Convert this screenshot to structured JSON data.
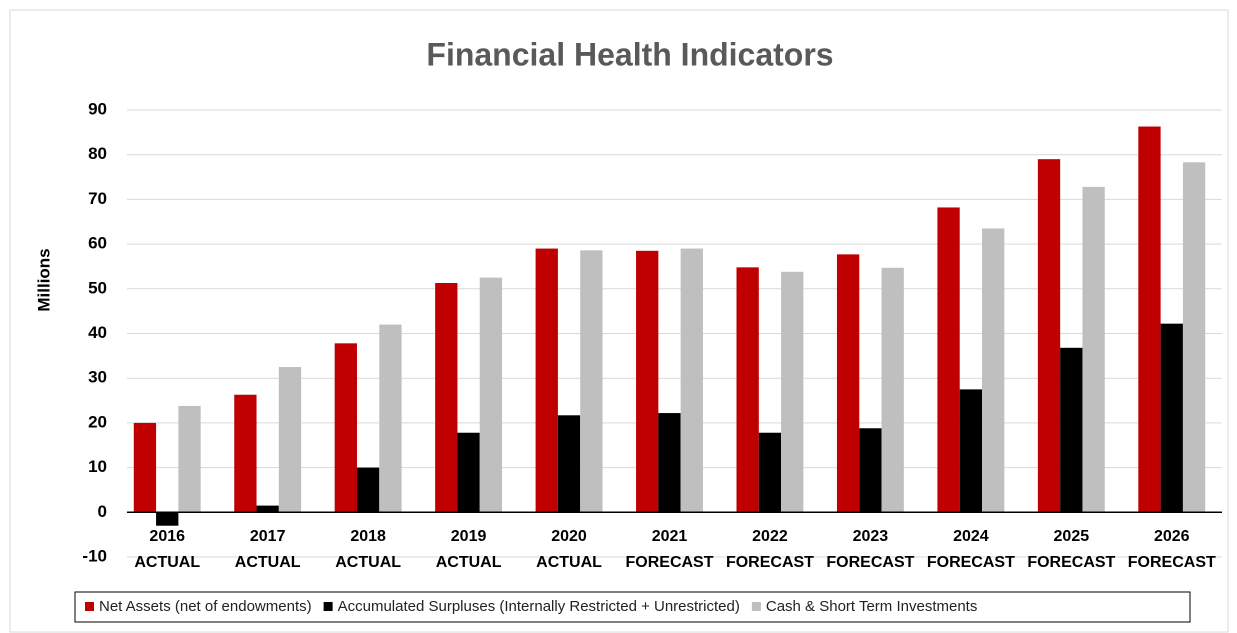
{
  "chart_data": {
    "type": "bar",
    "title": "Financial Health Indicators",
    "y_label": "Millions",
    "categories": [
      [
        "2016",
        "ACTUAL"
      ],
      [
        "2017",
        "ACTUAL"
      ],
      [
        "2018",
        "ACTUAL"
      ],
      [
        "2019",
        "ACTUAL"
      ],
      [
        "2020",
        "ACTUAL"
      ],
      [
        "2021",
        "FORECAST"
      ],
      [
        "2022",
        "FORECAST"
      ],
      [
        "2023",
        "FORECAST"
      ],
      [
        "2024",
        "FORECAST"
      ],
      [
        "2025",
        "FORECAST"
      ],
      [
        "2026",
        "FORECAST"
      ]
    ],
    "series": [
      {
        "name": "Net Assets (net of endowments)",
        "color": "#c00000",
        "values": [
          20,
          26.3,
          37.8,
          51.3,
          59,
          58.5,
          54.8,
          57.7,
          68.2,
          79,
          86.3
        ]
      },
      {
        "name": "Accumulated Surpluses (Internally Restricted + Unrestricted)",
        "color": "#000000",
        "values": [
          -3,
          1.5,
          10,
          17.8,
          21.7,
          22.2,
          17.8,
          18.8,
          27.5,
          36.8,
          42.2
        ]
      },
      {
        "name": "Cash & Short Term Investments",
        "color": "#bfbfbf",
        "values": [
          23.8,
          32.5,
          42,
          52.5,
          58.6,
          59,
          53.8,
          54.7,
          63.5,
          72.8,
          78.3
        ]
      }
    ],
    "ylim": [
      -10,
      90
    ],
    "yticks": [
      -10,
      0,
      10,
      20,
      30,
      40,
      50,
      60,
      70,
      80,
      90
    ],
    "grid": true,
    "legend": "bottom"
  }
}
